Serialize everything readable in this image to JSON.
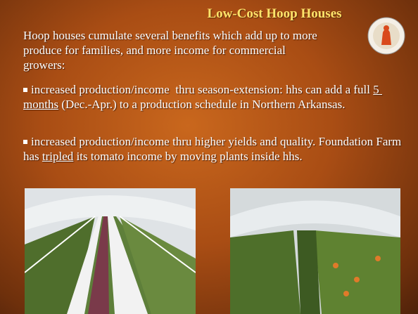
{
  "slide": {
    "title": "Low-Cost Hoop Houses",
    "intro": "Hoop houses cumulate several benefits which add up to more produce for families, and more income for commercial growers:",
    "bullets": [
      {
        "segments": [
          {
            "text": "increased production/income  thru season-extension: hhs can add a full ",
            "underline": false
          },
          {
            "text": "5 months",
            "underline": true
          },
          {
            "text": " (Dec.-Apr.) to a production schedule in Northern Arkansas.",
            "underline": false
          }
        ]
      },
      {
        "segments": [
          {
            "text": "increased production/income thru higher yields and quality. Foundation Farm has ",
            "underline": false
          },
          {
            "text": "tripled",
            "underline": true
          },
          {
            "text": " its tomato income by moving plants inside hhs.",
            "underline": false
          }
        ]
      }
    ]
  }
}
